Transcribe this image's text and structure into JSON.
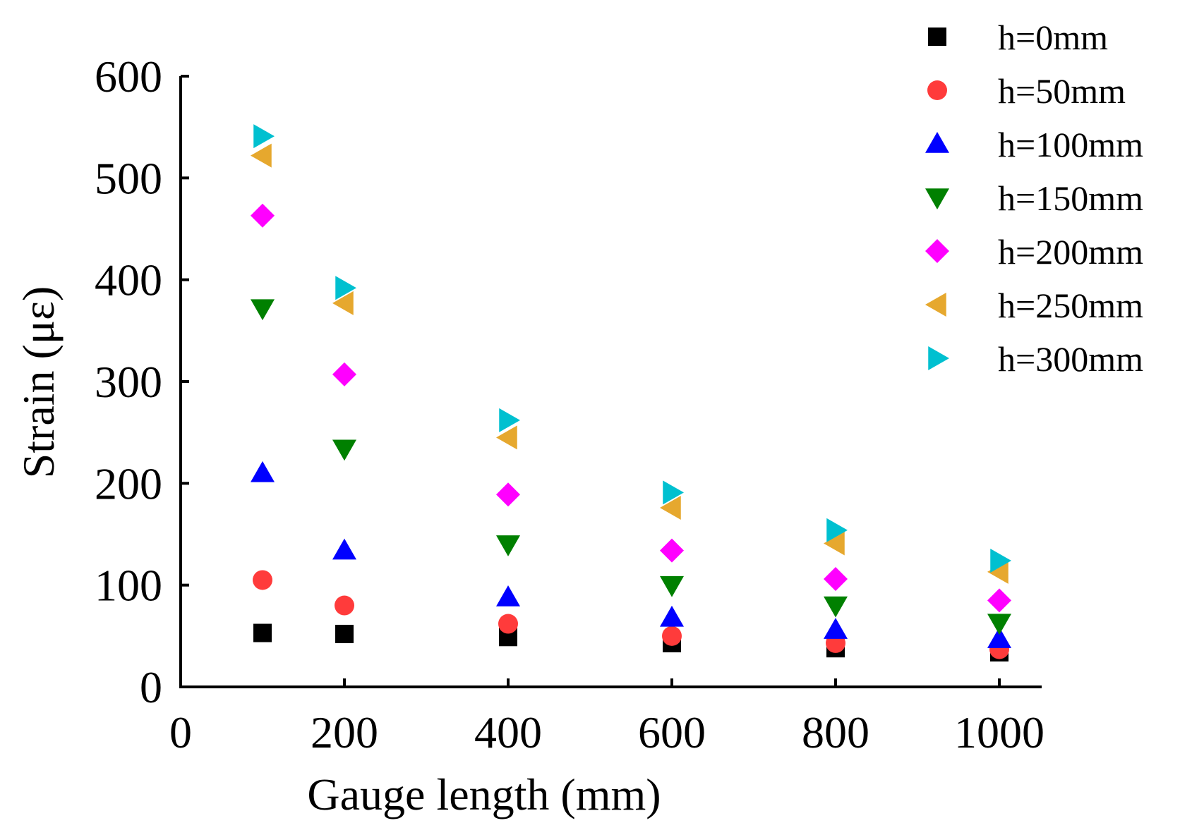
{
  "chart_data": {
    "type": "scatter",
    "title": "",
    "xlabel": "Gauge length (mm)",
    "ylabel": "Strain (με)",
    "xlim": [
      0,
      1050
    ],
    "ylim": [
      0,
      600
    ],
    "xticks": [
      0,
      200,
      400,
      600,
      800,
      1000
    ],
    "yticks": [
      0,
      100,
      200,
      300,
      400,
      500,
      600
    ],
    "x": [
      100,
      200,
      400,
      600,
      800,
      1000
    ],
    "grid": false,
    "legend_position": "top-right",
    "series": [
      {
        "name": "h=0mm",
        "marker": "square",
        "color": "#000000",
        "values": [
          53,
          52,
          49,
          43,
          38,
          34
        ]
      },
      {
        "name": "h=50mm",
        "marker": "circle",
        "color": "#ff3b3b",
        "values": [
          105,
          80,
          62,
          50,
          43,
          37
        ]
      },
      {
        "name": "h=100mm",
        "marker": "triangle-up",
        "color": "#0000ff",
        "values": [
          210,
          134,
          88,
          68,
          56,
          47
        ]
      },
      {
        "name": "h=150mm",
        "marker": "triangle-down",
        "color": "#008000",
        "values": [
          372,
          234,
          140,
          100,
          80,
          63
        ]
      },
      {
        "name": "h=200mm",
        "marker": "diamond",
        "color": "#ff00ff",
        "values": [
          463,
          307,
          189,
          134,
          106,
          85
        ]
      },
      {
        "name": "h=250mm",
        "marker": "triangle-left",
        "color": "#e6a82e",
        "values": [
          522,
          377,
          245,
          176,
          141,
          113
        ]
      },
      {
        "name": "h=300mm",
        "marker": "triangle-right",
        "color": "#00c0d0",
        "values": [
          541,
          392,
          262,
          191,
          154,
          124
        ]
      }
    ]
  }
}
